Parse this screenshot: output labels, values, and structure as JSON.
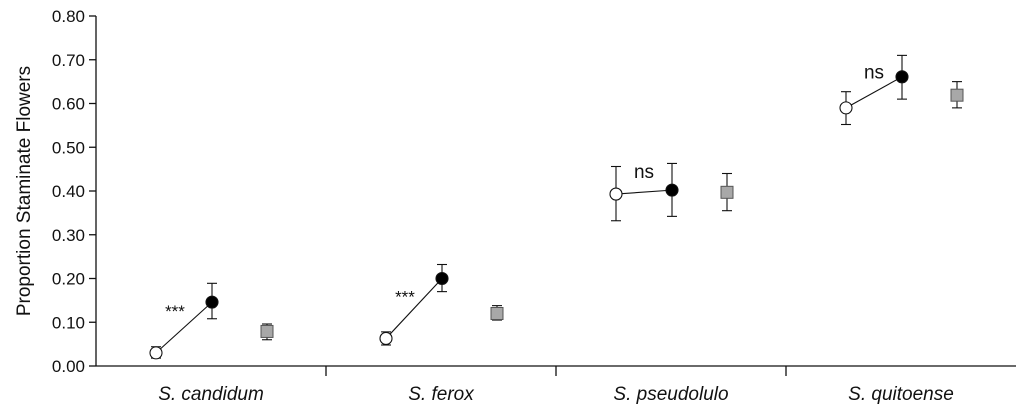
{
  "chart_data": {
    "type": "scatter",
    "ylabel": "Proportion Staminate Flowers",
    "xlabel": "",
    "ylim": [
      0,
      0.8
    ],
    "yticks": [
      "0.00",
      "0.10",
      "0.20",
      "0.30",
      "0.40",
      "0.50",
      "0.60",
      "0.70",
      "0.80"
    ],
    "categories": [
      "S. candidum",
      "S. ferox",
      "S. pseudolulo",
      "S. quitoense"
    ],
    "series": [
      {
        "marker": "open-circle",
        "fill": "#ffffff",
        "values": [
          0.03,
          0.063,
          0.393,
          0.59
        ],
        "err_low": [
          0.018,
          0.048,
          0.332,
          0.552
        ],
        "err_high": [
          0.044,
          0.078,
          0.456,
          0.627
        ]
      },
      {
        "marker": "filled-circle",
        "fill": "#000000",
        "values": [
          0.146,
          0.2,
          0.402,
          0.661
        ],
        "err_low": [
          0.108,
          0.17,
          0.342,
          0.61
        ],
        "err_high": [
          0.189,
          0.232,
          0.463,
          0.71
        ]
      },
      {
        "marker": "gray-square",
        "fill": "#a8a8a8",
        "values": [
          0.079,
          0.12,
          0.397,
          0.619
        ],
        "err_low": [
          0.06,
          0.105,
          0.355,
          0.59
        ],
        "err_high": [
          0.096,
          0.138,
          0.44,
          0.65
        ]
      }
    ],
    "annotations": [
      "***",
      "***",
      "ns",
      "ns"
    ],
    "grid": false,
    "legend": "none"
  }
}
